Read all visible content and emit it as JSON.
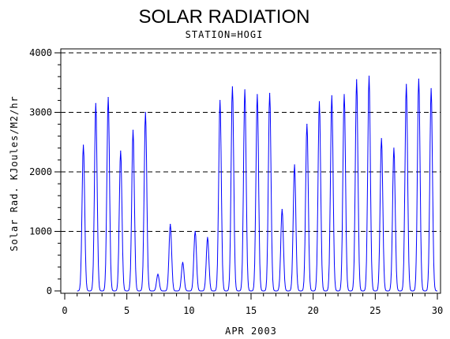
{
  "chart_data": {
    "type": "line",
    "title": "SOLAR RADIATION",
    "subtitle": "STATION=HOGI",
    "xlabel": "APR 2003",
    "ylabel": "Solar Rad. KJoules/M2/hr",
    "xlim": [
      0,
      30
    ],
    "ylim": [
      0,
      4000
    ],
    "x_ticks": [
      0,
      5,
      10,
      15,
      20,
      25,
      30
    ],
    "y_ticks": [
      0,
      1000,
      2000,
      3000,
      4000
    ],
    "grid": "horizontal dashed",
    "line_color": "#0000ff",
    "series": [
      {
        "daily_peaks": [
          {
            "day": 1,
            "peak": 2450
          },
          {
            "day": 2,
            "peak": 3150
          },
          {
            "day": 3,
            "peak": 3250
          },
          {
            "day": 4,
            "peak": 2350
          },
          {
            "day": 5,
            "peak": 2700
          },
          {
            "day": 6,
            "peak": 3000
          },
          {
            "day": 7,
            "peak": 280
          },
          {
            "day": 8,
            "peak": 1120
          },
          {
            "day": 9,
            "peak": 480
          },
          {
            "day": 10,
            "peak": 1000
          },
          {
            "day": 11,
            "peak": 900
          },
          {
            "day": 12,
            "peak": 3200
          },
          {
            "day": 13,
            "peak": 3430
          },
          {
            "day": 14,
            "peak": 3380
          },
          {
            "day": 15,
            "peak": 3300
          },
          {
            "day": 16,
            "peak": 3320
          },
          {
            "day": 17,
            "peak": 1370
          },
          {
            "day": 18,
            "peak": 2120
          },
          {
            "day": 19,
            "peak": 2800
          },
          {
            "day": 20,
            "peak": 3180
          },
          {
            "day": 21,
            "peak": 3280
          },
          {
            "day": 22,
            "peak": 3300
          },
          {
            "day": 23,
            "peak": 3550
          },
          {
            "day": 24,
            "peak": 3610
          },
          {
            "day": 25,
            "peak": 2560
          },
          {
            "day": 26,
            "peak": 2400
          },
          {
            "day": 27,
            "peak": 3470
          },
          {
            "day": 28,
            "peak": 3560
          },
          {
            "day": 29,
            "peak": 3400
          }
        ]
      }
    ]
  }
}
